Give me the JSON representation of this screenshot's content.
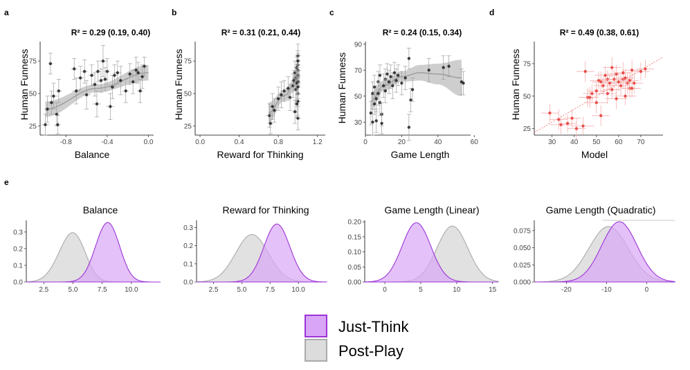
{
  "colors": {
    "just_think_fill": "#d9a6f7",
    "just_think_line": "#9b33d6",
    "post_play_fill": "#dcdcdc",
    "post_play_line": "#aaaaaa",
    "point_black": "#222222",
    "point_red": "#e53935",
    "band_gray": "#bdbdbd"
  },
  "legend": {
    "just_think": "Just-Think",
    "post_play": "Post-Play"
  },
  "chart_data": [
    {
      "panel": "a",
      "type": "scatter",
      "title": "R² = 0.29 (0.19, 0.40)",
      "xlabel": "Balance",
      "ylabel": "Human Funness",
      "xlim": [
        -1.05,
        0.05
      ],
      "ylim": [
        18,
        90
      ],
      "xticks": [
        -0.8,
        -0.4,
        0.0
      ],
      "xticklabels": [
        "-0.8",
        "-0.4",
        "0.0"
      ],
      "yticks": [
        25,
        50,
        75
      ],
      "yticklabels": [
        "25",
        "50",
        "75"
      ],
      "point_color": "black",
      "band": "linear",
      "fit": {
        "x": [
          -1.0,
          -0.5,
          0.0
        ],
        "y": [
          38,
          54,
          66
        ],
        "w": [
          6,
          3,
          6
        ]
      },
      "points": [
        [
          -1.0,
          26,
          8,
          0.04
        ],
        [
          -0.98,
          38,
          10,
          0.03
        ],
        [
          -0.95,
          73,
          8,
          0.02
        ],
        [
          -0.94,
          43,
          9,
          0.03
        ],
        [
          -0.92,
          48,
          10,
          0.04
        ],
        [
          -0.89,
          34,
          9,
          0.03
        ],
        [
          -0.88,
          26,
          7,
          0.03
        ],
        [
          -0.87,
          52,
          9,
          0.03
        ],
        [
          -0.72,
          69,
          8,
          0.03
        ],
        [
          -0.7,
          52,
          10,
          0.04
        ],
        [
          -0.66,
          62,
          9,
          0.03
        ],
        [
          -0.62,
          67,
          9,
          0.03
        ],
        [
          -0.6,
          49,
          11,
          0.04
        ],
        [
          -0.55,
          64,
          8,
          0.03
        ],
        [
          -0.52,
          57,
          9,
          0.04
        ],
        [
          -0.5,
          42,
          10,
          0.04
        ],
        [
          -0.49,
          67,
          8,
          0.03
        ],
        [
          -0.46,
          60,
          9,
          0.03
        ],
        [
          -0.44,
          75,
          12,
          0.04
        ],
        [
          -0.42,
          61,
          9,
          0.03
        ],
        [
          -0.4,
          67,
          10,
          0.03
        ],
        [
          -0.37,
          40,
          10,
          0.04
        ],
        [
          -0.35,
          55,
          9,
          0.03
        ],
        [
          -0.33,
          64,
          8,
          0.03
        ],
        [
          -0.3,
          66,
          9,
          0.04
        ],
        [
          -0.27,
          60,
          11,
          0.03
        ],
        [
          -0.22,
          52,
          9,
          0.03
        ],
        [
          -0.18,
          65,
          8,
          0.03
        ],
        [
          -0.15,
          59,
          9,
          0.04
        ],
        [
          -0.12,
          68,
          10,
          0.03
        ],
        [
          -0.1,
          66,
          8,
          0.03
        ],
        [
          -0.08,
          52,
          9,
          0.03
        ],
        [
          -0.06,
          63,
          9,
          0.03
        ],
        [
          -0.04,
          71,
          7,
          0.03
        ]
      ]
    },
    {
      "panel": "b",
      "type": "scatter",
      "title": "R² = 0.31 (0.21, 0.44)",
      "xlabel": "Reward for Thinking",
      "ylabel": "Human Funness",
      "xlim": [
        -0.05,
        1.28
      ],
      "ylim": [
        18,
        90
      ],
      "xticks": [
        0.0,
        0.4,
        0.8,
        1.2
      ],
      "xticklabels": [
        "0.0",
        "0.4",
        "0.8",
        "1.2"
      ],
      "yticks": [
        25,
        50,
        75
      ],
      "yticklabels": [
        "25",
        "50",
        "75"
      ],
      "point_color": "black",
      "band": "linear",
      "fit": {
        "x": [
          0.7,
          0.85,
          1.02
        ],
        "y": [
          35,
          48,
          62
        ],
        "w": [
          8,
          4,
          6
        ]
      },
      "points": [
        [
          0.71,
          33,
          9,
          0.04
        ],
        [
          0.72,
          27,
          8,
          0.03
        ],
        [
          0.74,
          40,
          10,
          0.04
        ],
        [
          0.76,
          37,
          9,
          0.03
        ],
        [
          0.8,
          46,
          9,
          0.04
        ],
        [
          0.83,
          49,
          10,
          0.03
        ],
        [
          0.86,
          52,
          8,
          0.04
        ],
        [
          0.9,
          54,
          9,
          0.03
        ],
        [
          0.92,
          47,
          10,
          0.03
        ],
        [
          0.95,
          56,
          9,
          0.04
        ],
        [
          0.96,
          60,
          8,
          0.03
        ],
        [
          0.97,
          66,
          9,
          0.03
        ],
        [
          0.98,
          62,
          8,
          0.04
        ],
        [
          0.98,
          53,
          11,
          0.03
        ],
        [
          0.99,
          70,
          8,
          0.03
        ],
        [
          0.99,
          58,
          9,
          0.03
        ],
        [
          1.0,
          72,
          9,
          0.03
        ],
        [
          1.0,
          50,
          10,
          0.03
        ],
        [
          1.0,
          64,
          8,
          0.03
        ],
        [
          1.0,
          79,
          9,
          0.03
        ],
        [
          1.0,
          44,
          11,
          0.03
        ],
        [
          1.0,
          68,
          8,
          0.03
        ],
        [
          1.0,
          31,
          9,
          0.03
        ],
        [
          1.0,
          59,
          9,
          0.03
        ],
        [
          0.99,
          42,
          10,
          0.03
        ],
        [
          0.97,
          36,
          9,
          0.03
        ],
        [
          1.0,
          75,
          8,
          0.03
        ],
        [
          1.0,
          55,
          9,
          0.03
        ]
      ]
    },
    {
      "panel": "c",
      "type": "scatter",
      "title": "R² = 0.24 (0.15, 0.34)",
      "xlabel": "Game Length",
      "ylabel": "Human Funness",
      "xlim": [
        0,
        58
      ],
      "ylim": [
        20,
        92
      ],
      "xticks": [
        0,
        20,
        40,
        60
      ],
      "xticklabels": [
        "0",
        "20",
        "40",
        "60"
      ],
      "yticks": [
        30,
        50,
        70,
        90
      ],
      "yticklabels": [
        "30",
        "50",
        "70",
        "90"
      ],
      "point_color": "black",
      "band": "quadratic",
      "fit": {
        "x": [
          3,
          10,
          20,
          30,
          40,
          53
        ],
        "y": [
          46,
          58,
          65,
          68,
          67,
          64
        ],
        "w": [
          7,
          4,
          4,
          6,
          8,
          14
        ]
      },
      "points": [
        [
          3,
          37,
          9,
          0.6
        ],
        [
          4,
          30,
          10,
          0.6
        ],
        [
          4,
          52,
          9,
          0.6
        ],
        [
          5,
          44,
          8,
          0.6
        ],
        [
          5,
          57,
          9,
          0.6
        ],
        [
          6,
          48,
          10,
          0.6
        ],
        [
          6,
          31,
          9,
          0.6
        ],
        [
          7,
          61,
          8,
          0.6
        ],
        [
          7,
          52,
          9,
          0.6
        ],
        [
          8,
          45,
          10,
          0.6
        ],
        [
          8,
          66,
          8,
          0.6
        ],
        [
          9,
          36,
          9,
          0.6
        ],
        [
          9,
          29,
          8,
          0.6
        ],
        [
          10,
          58,
          9,
          0.6
        ],
        [
          11,
          63,
          8,
          0.6
        ],
        [
          11,
          54,
          9,
          0.6
        ],
        [
          12,
          67,
          8,
          0.6
        ],
        [
          13,
          61,
          9,
          0.6
        ],
        [
          14,
          65,
          9,
          0.6
        ],
        [
          15,
          58,
          10,
          0.6
        ],
        [
          16,
          68,
          8,
          0.6
        ],
        [
          17,
          62,
          9,
          0.6
        ],
        [
          18,
          66,
          8,
          0.6
        ],
        [
          20,
          60,
          9,
          0.6
        ],
        [
          22,
          64,
          9,
          0.6
        ],
        [
          24,
          79,
          8,
          0.6
        ],
        [
          24,
          26,
          10,
          0.6
        ],
        [
          25,
          47,
          9,
          0.6
        ],
        [
          26,
          55,
          9,
          0.6
        ],
        [
          35,
          70,
          9,
          0.6
        ],
        [
          43,
          72,
          9,
          0.6
        ],
        [
          46,
          73,
          8,
          0.6
        ],
        [
          53,
          61,
          10,
          0.6
        ],
        [
          54,
          60,
          9,
          0.6
        ]
      ]
    },
    {
      "panel": "d",
      "type": "scatter",
      "title": "R² = 0.49 (0.38, 0.61)",
      "xlabel": "Model",
      "ylabel": "Human Funness",
      "xlim": [
        22,
        80
      ],
      "ylim": [
        20,
        92
      ],
      "xticks": [
        30,
        40,
        50,
        60,
        70
      ],
      "xticklabels": [
        "30",
        "40",
        "50",
        "60",
        "70"
      ],
      "yticks": [
        25,
        50,
        75
      ],
      "yticklabels": [
        "25",
        "50",
        "75"
      ],
      "point_color": "red",
      "band": "identity",
      "fit": {
        "x": [
          22,
          80
        ],
        "y": [
          22,
          80
        ],
        "w": [
          0,
          0
        ]
      },
      "points": [
        [
          29,
          37,
          7,
          4
        ],
        [
          33,
          32,
          8,
          4
        ],
        [
          34,
          28,
          7,
          5
        ],
        [
          37,
          29,
          7,
          4
        ],
        [
          39,
          33,
          7,
          4
        ],
        [
          41,
          25,
          8,
          4
        ],
        [
          44,
          27,
          7,
          5
        ],
        [
          45,
          69,
          8,
          4
        ],
        [
          46,
          49,
          7,
          4
        ],
        [
          47,
          49,
          8,
          4
        ],
        [
          48,
          52,
          7,
          4
        ],
        [
          50,
          54,
          7,
          4
        ],
        [
          50,
          45,
          8,
          5
        ],
        [
          51,
          62,
          7,
          4
        ],
        [
          52,
          61,
          8,
          4
        ],
        [
          52,
          35,
          8,
          4
        ],
        [
          53,
          58,
          7,
          4
        ],
        [
          54,
          66,
          7,
          5
        ],
        [
          55,
          52,
          8,
          4
        ],
        [
          55,
          63,
          7,
          4
        ],
        [
          56,
          60,
          7,
          4
        ],
        [
          57,
          72,
          8,
          4
        ],
        [
          57,
          55,
          7,
          4
        ],
        [
          58,
          63,
          7,
          4
        ],
        [
          59,
          48,
          8,
          5
        ],
        [
          59,
          67,
          7,
          4
        ],
        [
          60,
          61,
          7,
          4
        ],
        [
          61,
          58,
          8,
          4
        ],
        [
          62,
          63,
          7,
          4
        ],
        [
          62,
          68,
          8,
          4
        ],
        [
          63,
          64,
          7,
          4
        ],
        [
          63,
          50,
          7,
          5
        ],
        [
          64,
          60,
          8,
          4
        ],
        [
          65,
          56,
          7,
          4
        ],
        [
          65,
          62,
          7,
          4
        ],
        [
          66,
          70,
          8,
          4
        ],
        [
          66,
          56,
          7,
          4
        ],
        [
          67,
          60,
          8,
          4
        ],
        [
          70,
          69,
          7,
          4
        ],
        [
          72,
          71,
          7,
          4
        ]
      ]
    },
    {
      "panel": "e1",
      "type": "area",
      "title": "Balance",
      "xlim": [
        1.0,
        12.5
      ],
      "ylim": [
        0,
        0.37
      ],
      "xticks": [
        2.5,
        5.0,
        7.5,
        10.0
      ],
      "xticklabels": [
        "2.5",
        "5.0",
        "7.5",
        "10.0"
      ],
      "yticks": [
        0.0,
        0.1,
        0.2,
        0.3
      ],
      "yticklabels": [
        "0.0",
        "0.1",
        "0.2",
        "0.3"
      ],
      "series": [
        {
          "name": "Post-Play",
          "gauss": [
            {
              "m": 4.6,
              "s": 1.1,
              "w": 0.62
            },
            {
              "m": 5.4,
              "s": 0.9,
              "w": 0.38
            }
          ],
          "scale": 0.296
        },
        {
          "name": "Just-Think",
          "gauss": [
            {
              "m": 7.6,
              "s": 0.95,
              "w": 0.55
            },
            {
              "m": 8.4,
              "s": 0.9,
              "w": 0.45
            }
          ],
          "scale": 0.357
        }
      ]
    },
    {
      "panel": "e2",
      "type": "area",
      "title": "Reward for Thinking",
      "xlim": [
        1.0,
        12.5
      ],
      "ylim": [
        0,
        0.34
      ],
      "xticks": [
        2.5,
        5.0,
        7.5,
        10.0
      ],
      "xticklabels": [
        "2.5",
        "5.0",
        "7.5",
        "10.0"
      ],
      "yticks": [
        0.0,
        0.1,
        0.2,
        0.3
      ],
      "yticklabels": [
        "0.0",
        "0.1",
        "0.2",
        "0.3"
      ],
      "series": [
        {
          "name": "Post-Play",
          "gauss": [
            {
              "m": 5.9,
              "s": 1.45,
              "w": 1.0
            }
          ],
          "scale": 0.262
        },
        {
          "name": "Just-Think",
          "gauss": [
            {
              "m": 8.1,
              "s": 1.15,
              "w": 1.0
            }
          ],
          "scale": 0.32
        }
      ]
    },
    {
      "panel": "e3",
      "type": "area",
      "title": "Game Length (Linear)",
      "xlim": [
        -2.8,
        15.8
      ],
      "ylim": [
        0,
        0.205
      ],
      "xticks": [
        0,
        5,
        10,
        15
      ],
      "xticklabels": [
        "0",
        "5",
        "10",
        "15"
      ],
      "yticks": [
        0.0,
        0.05,
        0.1,
        0.15,
        0.2
      ],
      "yticklabels": [
        "0.00",
        "0.05",
        "0.10",
        "0.15",
        "0.20"
      ],
      "series": [
        {
          "name": "Post-Play",
          "gauss": [
            {
              "m": 9.4,
              "s": 2.15,
              "w": 1.0
            }
          ],
          "scale": 0.186
        },
        {
          "name": "Just-Think",
          "gauss": [
            {
              "m": 4.4,
              "s": 2.0,
              "w": 1.0
            }
          ],
          "scale": 0.197
        }
      ]
    },
    {
      "panel": "e4",
      "type": "area",
      "title": "Game Length (Quadratic)",
      "xlim": [
        -28,
        7
      ],
      "ylim": [
        0,
        0.09
      ],
      "xticks": [
        -20,
        -10,
        0
      ],
      "xticklabels": [
        "-20",
        "-10",
        "0"
      ],
      "yticks": [
        0.0,
        0.025,
        0.05,
        0.075
      ],
      "yticklabels": [
        "0.000",
        "0.025",
        "0.050",
        "0.075"
      ],
      "series": [
        {
          "name": "Post-Play",
          "gauss": [
            {
              "m": -9.5,
              "s": 4.9,
              "w": 1.0
            }
          ],
          "scale": 0.081
        },
        {
          "name": "Just-Think",
          "gauss": [
            {
              "m": -6.8,
              "s": 4.4,
              "w": 1.0
            }
          ],
          "scale": 0.088
        }
      ]
    }
  ]
}
